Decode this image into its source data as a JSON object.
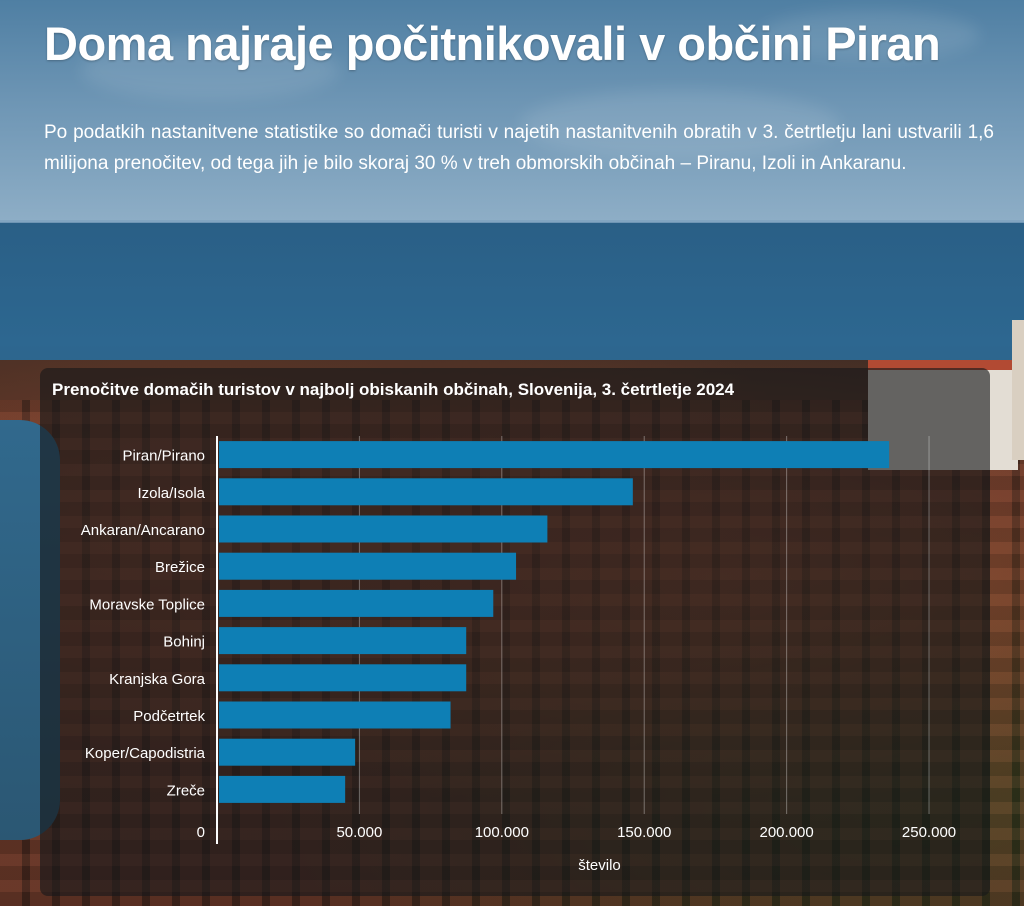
{
  "page": {
    "headline": "Doma najraje počitnikovali v občini Piran",
    "intro": "Po podatkih nastanitvene statistike so domači turisti v najetih nastanitvenih obratih v 3. četrtletju lani ustvarili 1,6 milijona prenočitev, od tega jih je bilo skoraj 30 % v treh obmorskih občinah – Piranu, Izoli in Ankaranu."
  },
  "chart_data": {
    "type": "bar",
    "orientation": "horizontal",
    "title": "Prenočitve domačih turistov v najbolj obiskanih občinah, Slovenija, 3. četrtletje 2024",
    "xlabel": "število",
    "ylabel": "",
    "categories": [
      "Piran/Pirano",
      "Izola/Isola",
      "Ankaran/Ancarano",
      "Brežice",
      "Moravske Toplice",
      "Bohinj",
      "Kranjska Gora",
      "Podčetrtek",
      "Koper/Capodistria",
      "Zreče"
    ],
    "values": [
      236000,
      146000,
      116000,
      105000,
      97000,
      87500,
      87500,
      82000,
      48500,
      45000
    ],
    "xlim": [
      0,
      270000
    ],
    "xticks": [
      0,
      50000,
      100000,
      150000,
      200000,
      250000
    ],
    "xtick_labels": [
      "0",
      "50.000",
      "100.000",
      "150.000",
      "200.000",
      "250.000"
    ],
    "grid": "vertical",
    "bar_color": "#0e7fb5"
  }
}
